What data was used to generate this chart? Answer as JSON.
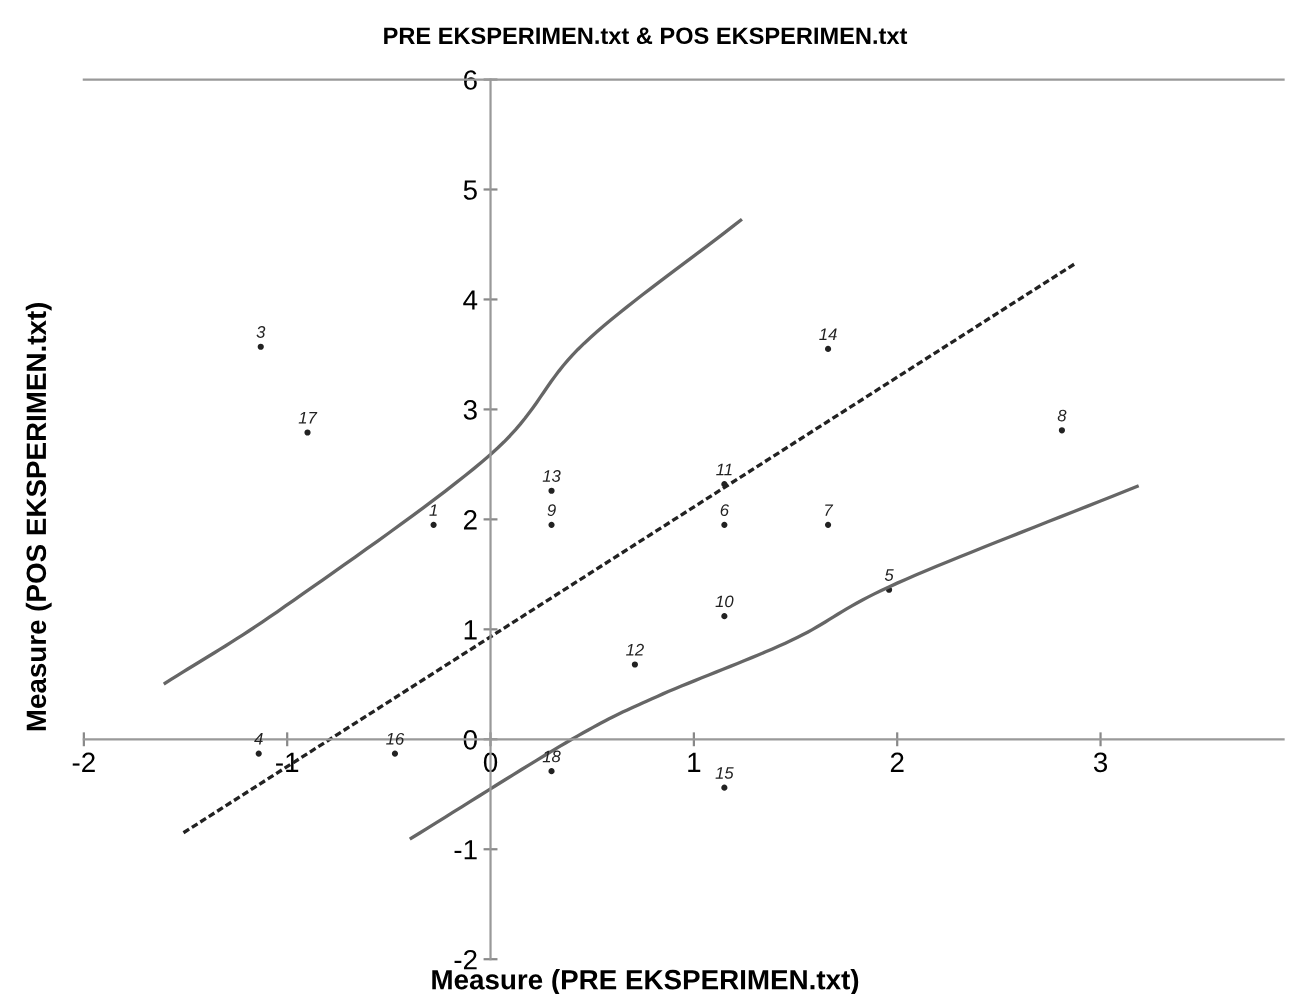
{
  "chart_data": {
    "type": "scatter",
    "title": "PRE EKSPERIMEN.txt & POS EKSPERIMEN.txt",
    "xlabel": "Measure (PRE EKSPERIMEN.txt)",
    "ylabel": "Measure (POS EKSPERIMEN.txt)",
    "xlim": [
      -2,
      3.9
    ],
    "ylim": [
      -2,
      6
    ],
    "xticks": [
      -2,
      -1,
      0,
      1,
      2,
      3
    ],
    "yticks": [
      -2,
      -1,
      0,
      1,
      2,
      3,
      4,
      5,
      6
    ],
    "grid": false,
    "series": [
      {
        "color": "#222222",
        "x": [
          -1.13,
          -0.9,
          -0.28,
          0.3,
          0.3,
          1.15,
          1.15,
          1.66,
          1.66,
          2.81,
          1.96,
          1.15,
          0.71,
          -1.14,
          -0.47,
          0.3,
          1.15
        ],
        "values": [
          3.57,
          2.79,
          1.95,
          2.26,
          1.95,
          2.32,
          1.95,
          3.55,
          1.95,
          2.81,
          1.36,
          1.12,
          0.68,
          -0.13,
          -0.13,
          -0.29,
          -0.44
        ]
      },
      {
        "type": "line",
        "color": "#222222",
        "line_style": "dashed",
        "x": [
          -1.51,
          2.87
        ],
        "values": [
          -0.85,
          4.32
        ]
      },
      {
        "type": "line",
        "color": "#666666",
        "line_style": "solid",
        "x": [
          -1.6,
          -1.01,
          0,
          0.46,
          1.23
        ],
        "values": [
          0.51,
          1.21,
          2.59,
          3.6,
          4.72
        ]
      },
      {
        "type": "line",
        "color": "#666666",
        "line_style": "solid",
        "x": [
          -0.39,
          0.4,
          0.82,
          1.48,
          2.0,
          3.18
        ],
        "values": [
          -0.9,
          0,
          0.39,
          0.9,
          1.42,
          2.3
        ]
      }
    ],
    "annotations": [
      {
        "text": "3",
        "x": -1.13,
        "y": 3.57
      },
      {
        "text": "17",
        "x": -0.9,
        "y": 2.79
      },
      {
        "text": "1",
        "x": -0.28,
        "y": 1.95
      },
      {
        "text": "13",
        "x": 0.3,
        "y": 2.26
      },
      {
        "text": "9",
        "x": 0.3,
        "y": 1.95
      },
      {
        "text": "11",
        "x": 1.15,
        "y": 2.32
      },
      {
        "text": "6",
        "x": 1.15,
        "y": 1.95
      },
      {
        "text": "14",
        "x": 1.66,
        "y": 3.55
      },
      {
        "text": "7",
        "x": 1.66,
        "y": 1.95
      },
      {
        "text": "8",
        "x": 2.81,
        "y": 2.81
      },
      {
        "text": "5",
        "x": 1.96,
        "y": 1.36
      },
      {
        "text": "10",
        "x": 1.15,
        "y": 1.12
      },
      {
        "text": "12",
        "x": 0.71,
        "y": 0.68
      },
      {
        "text": "4",
        "x": -1.14,
        "y": -0.13
      },
      {
        "text": "16",
        "x": -0.47,
        "y": -0.13
      },
      {
        "text": "18",
        "x": 0.3,
        "y": -0.29
      },
      {
        "text": "15",
        "x": 1.15,
        "y": -0.44
      }
    ]
  }
}
